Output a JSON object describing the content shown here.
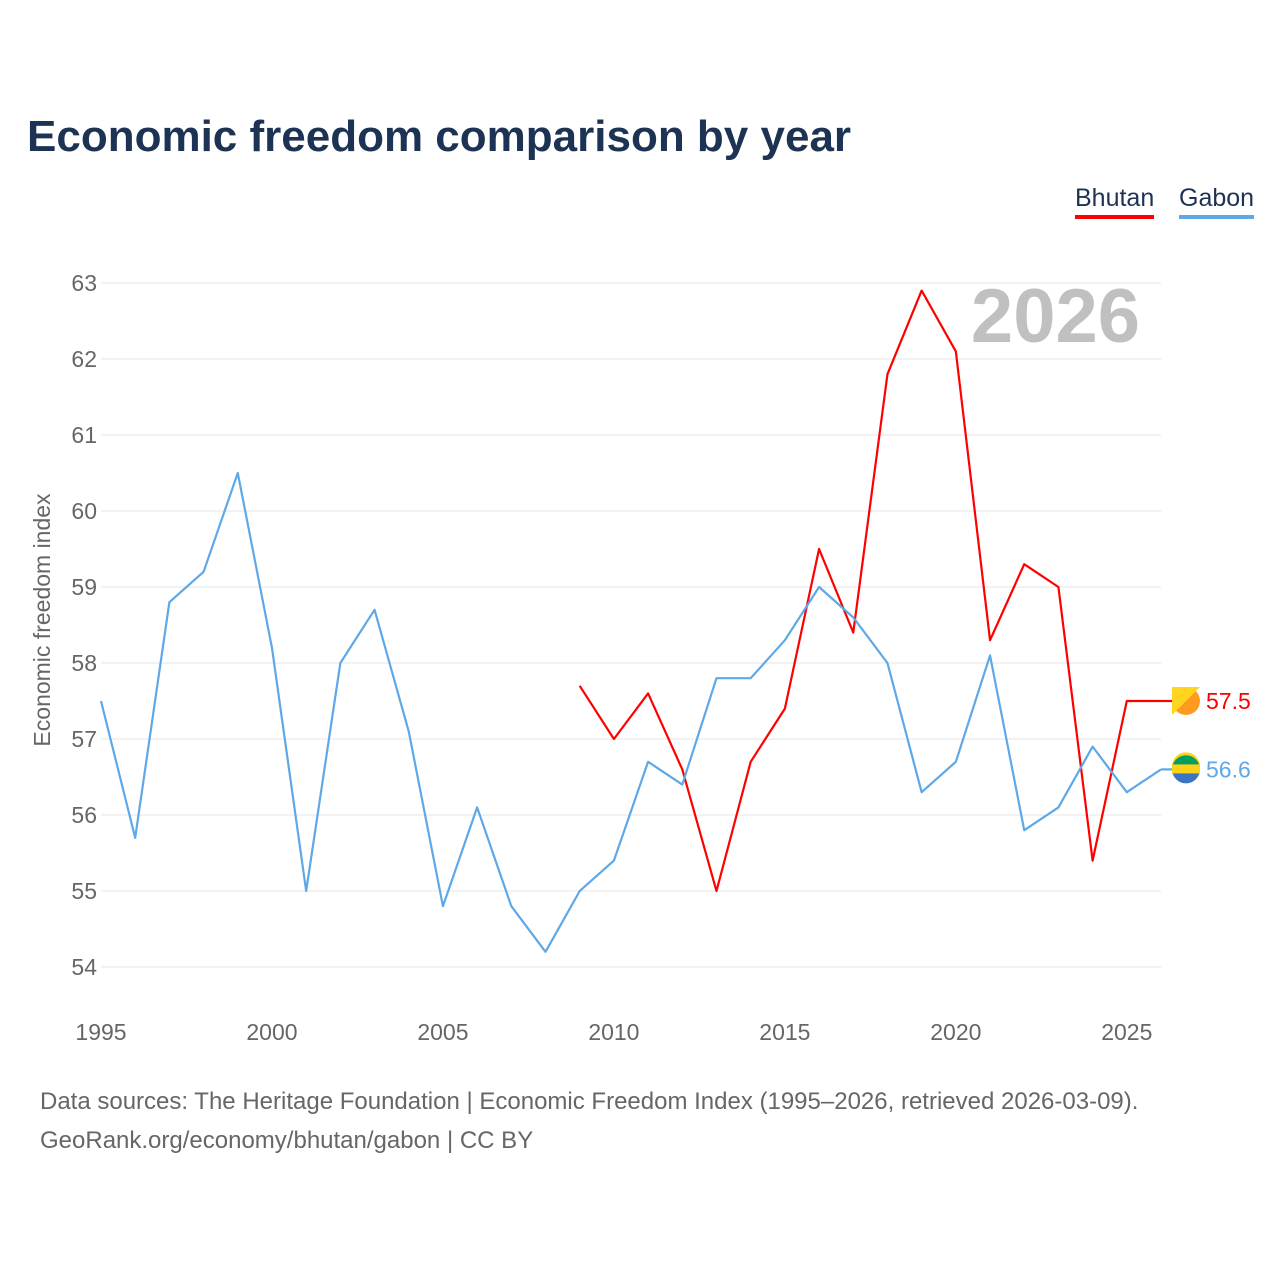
{
  "chart_data": {
    "type": "line",
    "title": "Economic freedom comparison by year",
    "xlabel": "",
    "ylabel": "Economic freedom index",
    "xlim": [
      1995,
      2026
    ],
    "ylim": [
      54,
      63
    ],
    "x_ticks": [
      "1995",
      "2000",
      "2005",
      "2010",
      "2015",
      "2020",
      "2025"
    ],
    "y_ticks": [
      "54",
      "55",
      "56",
      "57",
      "58",
      "59",
      "60",
      "61",
      "62",
      "63"
    ],
    "watermark_year": "2026",
    "legend_position": "top-right",
    "grid": true,
    "series": [
      {
        "name": "Bhutan",
        "color": "#ff0000",
        "end_label": "57.5",
        "x": [
          2009,
          2010,
          2011,
          2012,
          2013,
          2014,
          2015,
          2016,
          2017,
          2018,
          2019,
          2020,
          2021,
          2022,
          2023,
          2024,
          2025,
          2026
        ],
        "values": [
          57.7,
          57.0,
          57.6,
          56.6,
          55.0,
          56.7,
          57.4,
          59.5,
          58.4,
          61.8,
          62.9,
          62.1,
          58.3,
          59.3,
          59.0,
          55.4,
          57.5,
          57.5
        ]
      },
      {
        "name": "Gabon",
        "color": "#5ea8e8",
        "end_label": "56.6",
        "x": [
          1995,
          1996,
          1997,
          1998,
          1999,
          2000,
          2001,
          2002,
          2003,
          2004,
          2005,
          2006,
          2007,
          2008,
          2009,
          2010,
          2011,
          2012,
          2013,
          2014,
          2015,
          2016,
          2017,
          2018,
          2019,
          2020,
          2021,
          2022,
          2023,
          2024,
          2025,
          2026
        ],
        "values": [
          57.5,
          55.7,
          58.8,
          59.2,
          60.5,
          58.2,
          55.0,
          58.0,
          58.7,
          57.1,
          54.8,
          56.1,
          54.8,
          54.2,
          55.0,
          55.4,
          56.7,
          56.4,
          57.8,
          57.8,
          58.3,
          59.0,
          58.6,
          58.0,
          56.3,
          56.7,
          58.1,
          55.8,
          56.1,
          56.9,
          56.3,
          56.6
        ]
      }
    ]
  },
  "footer": {
    "source": "Data sources: The Heritage Foundation | Economic Freedom Index (1995–2026, retrieved 2026-03-09).",
    "credit": "GeoRank.org/economy/bhutan/gabon | CC BY"
  }
}
